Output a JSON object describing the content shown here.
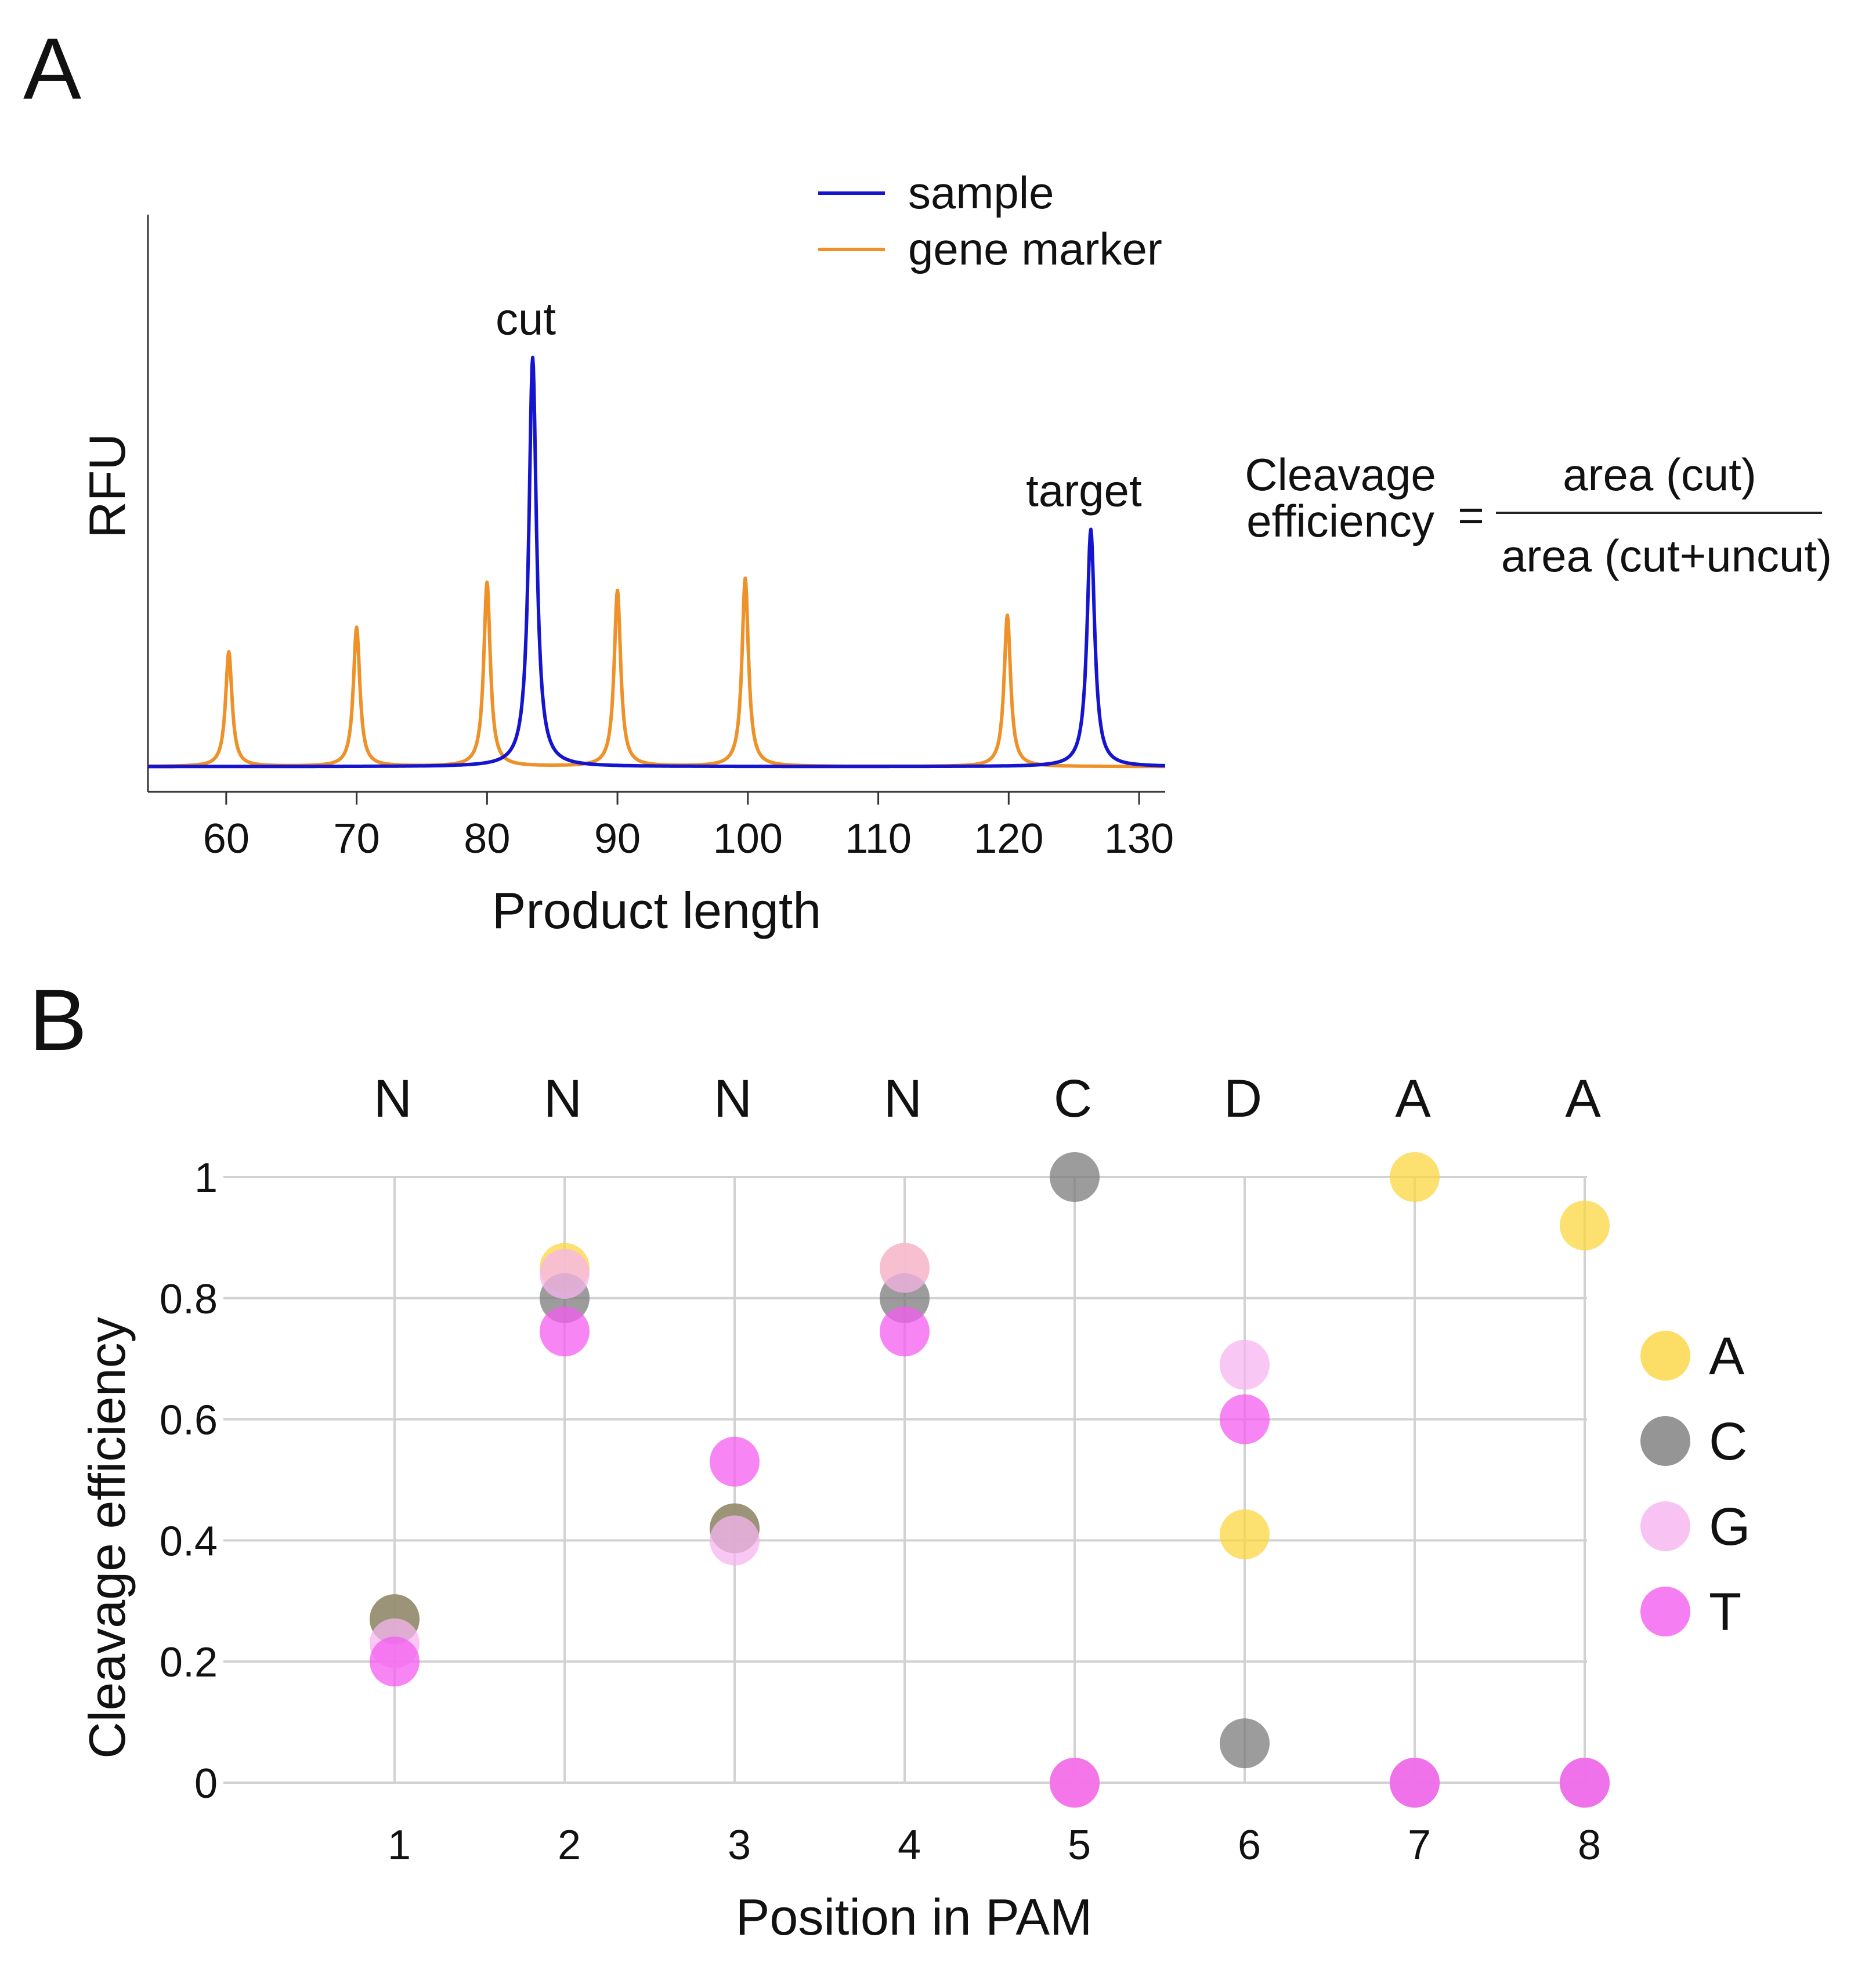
{
  "panels": {
    "a_label": "A",
    "b_label": "B"
  },
  "formula": {
    "lhs_line1": "Cleavage",
    "lhs_line2": "efficiency",
    "equals": "=",
    "numerator": "area (cut)",
    "denominator": "area (cut+uncut)"
  },
  "chart_data": [
    {
      "type": "line",
      "panel": "A",
      "title": "",
      "xlabel": "Product length",
      "ylabel": "RFU",
      "xlim": [
        54,
        132
      ],
      "ylim": [
        0,
        1
      ],
      "xticks": [
        60,
        70,
        80,
        90,
        100,
        110,
        120,
        130
      ],
      "xtick_labels": [
        "60",
        "70",
        "80",
        "90",
        "100",
        "110",
        "120",
        "130"
      ],
      "legend": {
        "placement": "top-right",
        "entries": [
          "sample",
          "gene marker"
        ]
      },
      "series": [
        {
          "name": "sample",
          "color": "#1515d0",
          "baseline": 0.005,
          "peaks": [
            {
              "position": 83.5,
              "height": 1.0,
              "width": 0.35,
              "label": "cut"
            },
            {
              "position": 126.3,
              "height": 0.58,
              "width": 0.35,
              "label": "target"
            }
          ]
        },
        {
          "name": "gene marker",
          "color": "#ee9128",
          "baseline": 0.005,
          "peaks": [
            {
              "position": 60.2,
              "height": 0.28,
              "width": 0.3
            },
            {
              "position": 70.0,
              "height": 0.34,
              "width": 0.3
            },
            {
              "position": 80.0,
              "height": 0.45,
              "width": 0.3
            },
            {
              "position": 90.0,
              "height": 0.43,
              "width": 0.3
            },
            {
              "position": 99.8,
              "height": 0.46,
              "width": 0.3
            },
            {
              "position": 119.9,
              "height": 0.37,
              "width": 0.3
            }
          ]
        }
      ]
    },
    {
      "type": "scatter",
      "panel": "B",
      "title": "",
      "xlabel": "Position in PAM",
      "ylabel": "Cleavage efficiency",
      "categories": [
        "1",
        "2",
        "3",
        "4",
        "5",
        "6",
        "7",
        "8"
      ],
      "category_letters": [
        "N",
        "N",
        "N",
        "N",
        "C",
        "D",
        "A",
        "A"
      ],
      "ylim": [
        0,
        1
      ],
      "yticks": [
        0,
        0.2,
        0.4,
        0.6,
        0.8,
        1
      ],
      "ytick_labels": [
        "0",
        "0.2",
        "0.4",
        "0.6",
        "0.8",
        "1"
      ],
      "grid": true,
      "legend": {
        "placement": "right",
        "entries": [
          "A",
          "C",
          "G",
          "T"
        ]
      },
      "series": [
        {
          "name": "A",
          "color": "#fbd640",
          "values": [
            0.27,
            0.85,
            0.42,
            0.85,
            0,
            0.41,
            1.0,
            0.92
          ]
        },
        {
          "name": "C",
          "color": "#7b7b7b",
          "values": [
            0.27,
            0.8,
            0.42,
            0.8,
            1.0,
            0.065,
            0,
            0
          ]
        },
        {
          "name": "G",
          "color": "#f6b4f0",
          "values": [
            0.23,
            0.84,
            0.4,
            0.85,
            0,
            0.69,
            0,
            0
          ]
        },
        {
          "name": "T",
          "color": "#f45ef0",
          "values": [
            0.2,
            0.745,
            0.53,
            0.745,
            0,
            0.6,
            0,
            0
          ]
        }
      ]
    }
  ]
}
